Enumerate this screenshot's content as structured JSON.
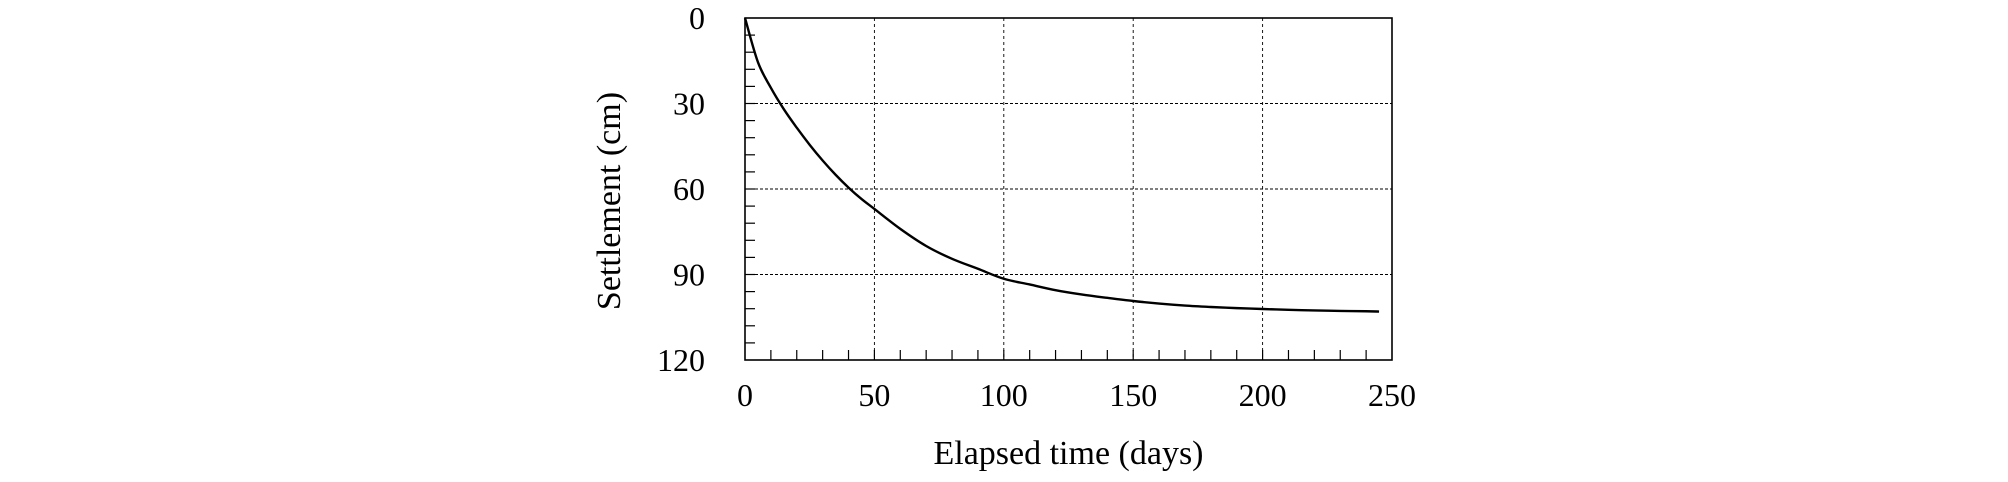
{
  "chart_data": {
    "type": "line",
    "title": "",
    "xlabel": "Elapsed time (days)",
    "ylabel": "Settlement (cm)",
    "xlim": [
      0,
      250
    ],
    "ylim": [
      0,
      120
    ],
    "y_inverted": true,
    "x_ticks": [
      "0",
      "50",
      "100",
      "150",
      "200",
      "250"
    ],
    "y_ticks": [
      "0",
      "30",
      "60",
      "90",
      "120"
    ],
    "grid": {
      "vertical": "dashed",
      "horizontal": "dashed"
    },
    "series": [
      {
        "x": [
          0,
          5,
          10,
          15,
          20,
          25,
          30,
          35,
          40,
          45,
          50,
          60,
          70,
          80,
          90,
          100,
          110,
          120,
          130,
          140,
          150,
          160,
          170,
          180,
          190,
          200,
          210,
          220,
          230,
          240,
          245
        ],
        "y": [
          0,
          15.5,
          24.5,
          32,
          38.5,
          44.5,
          50,
          55,
          59.5,
          63.5,
          67,
          74,
          80,
          84.5,
          88,
          91.5,
          93.5,
          95.5,
          97,
          98.2,
          99.3,
          100.2,
          100.9,
          101.4,
          101.8,
          102.1,
          102.4,
          102.6,
          102.8,
          102.9,
          103
        ]
      }
    ],
    "colors": {
      "line": "#000000",
      "grid": "#000000",
      "frame": "#000000"
    }
  }
}
